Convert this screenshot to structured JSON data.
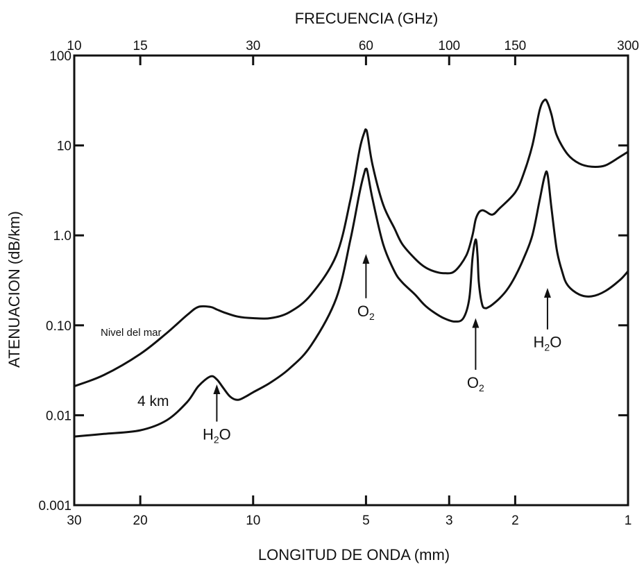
{
  "chart_data": {
    "type": "line",
    "title": "",
    "xlabel": "LONGITUD DE ONDA (mm)",
    "x2label": "FRECUENCIA (GHz)",
    "ylabel": "ATENUACION (dB/km)",
    "x_scale": "log",
    "y_scale": "log",
    "xlim": [
      30,
      1
    ],
    "ylim": [
      0.001,
      100
    ],
    "grid": false,
    "x_ticks": [
      {
        "value": 30,
        "label": "30"
      },
      {
        "value": 20,
        "label": "20"
      },
      {
        "value": 10,
        "label": "10"
      },
      {
        "value": 5,
        "label": "5"
      },
      {
        "value": 3,
        "label": "3"
      },
      {
        "value": 2,
        "label": "2"
      },
      {
        "value": 1,
        "label": "1"
      }
    ],
    "x2_ticks": [
      {
        "value": 10,
        "label": "10"
      },
      {
        "value": 15,
        "label": "15"
      },
      {
        "value": 30,
        "label": "30"
      },
      {
        "value": 60,
        "label": "60"
      },
      {
        "value": 100,
        "label": "100"
      },
      {
        "value": 150,
        "label": "150"
      },
      {
        "value": 300,
        "label": "300"
      }
    ],
    "y_ticks": [
      {
        "value": 0.001,
        "label": "0.001"
      },
      {
        "value": 0.01,
        "label": "0.01"
      },
      {
        "value": 0.1,
        "label": "0.10"
      },
      {
        "value": 1,
        "label": "1.0"
      },
      {
        "value": 10,
        "label": "10"
      },
      {
        "value": 100,
        "label": "100"
      }
    ],
    "series": [
      {
        "name": "Nivel del mar",
        "x": [
          30,
          25,
          20,
          17,
          15,
          14,
          13,
          12.5,
          12,
          11,
          10,
          9,
          8,
          7,
          6,
          5.5,
          5.2,
          5.05,
          5.0,
          4.95,
          4.8,
          4.5,
          4.2,
          4.0,
          3.7,
          3.5,
          3.3,
          3.1,
          2.9,
          2.7,
          2.6,
          2.55,
          2.5,
          2.45,
          2.4,
          2.3,
          2.2,
          2.0,
          1.9,
          1.8,
          1.72,
          1.67,
          1.64,
          1.6,
          1.55,
          1.45,
          1.35,
          1.25,
          1.15,
          1.05,
          1.0
        ],
        "y": [
          0.021,
          0.028,
          0.048,
          0.082,
          0.13,
          0.16,
          0.16,
          0.15,
          0.14,
          0.125,
          0.12,
          0.12,
          0.14,
          0.22,
          0.6,
          2.5,
          9,
          14,
          15,
          13,
          6,
          2.2,
          1.2,
          0.8,
          0.55,
          0.45,
          0.4,
          0.38,
          0.4,
          0.6,
          1.0,
          1.5,
          1.8,
          1.9,
          1.85,
          1.7,
          2.0,
          3.0,
          4.8,
          10,
          25,
          32,
          30,
          22,
          13,
          8,
          6.3,
          5.8,
          6.0,
          7.5,
          8.5
        ]
      },
      {
        "name": "4 km",
        "x": [
          30,
          25,
          20,
          17,
          15,
          14,
          13,
          12.5,
          12,
          11.5,
          11,
          10.5,
          10,
          9,
          8,
          7,
          6,
          5.5,
          5.2,
          5.05,
          5.0,
          4.95,
          4.8,
          4.5,
          4.2,
          4.0,
          3.7,
          3.5,
          3.3,
          3.1,
          2.9,
          2.75,
          2.65,
          2.6,
          2.55,
          2.52,
          2.5,
          2.45,
          2.4,
          2.35,
          2.3,
          2.2,
          2.1,
          2.0,
          1.9,
          1.8,
          1.72,
          1.67,
          1.64,
          1.6,
          1.55,
          1.5,
          1.45,
          1.35,
          1.25,
          1.15,
          1.05,
          1.0
        ],
        "y": [
          0.0058,
          0.0062,
          0.0068,
          0.0088,
          0.014,
          0.021,
          0.027,
          0.025,
          0.02,
          0.016,
          0.0148,
          0.016,
          0.018,
          0.023,
          0.033,
          0.06,
          0.2,
          0.9,
          3.0,
          5.0,
          5.5,
          5.0,
          2.5,
          0.8,
          0.4,
          0.3,
          0.22,
          0.17,
          0.14,
          0.12,
          0.11,
          0.12,
          0.2,
          0.55,
          0.9,
          0.6,
          0.3,
          0.17,
          0.155,
          0.16,
          0.17,
          0.2,
          0.25,
          0.35,
          0.55,
          1.0,
          2.5,
          4.5,
          4.8,
          2.0,
          0.7,
          0.4,
          0.28,
          0.22,
          0.21,
          0.24,
          0.32,
          0.4
        ]
      }
    ],
    "annotations": [
      {
        "id": "h2o_low",
        "text": "H",
        "sub": "2",
        "tail": "O",
        "x": 12.5,
        "y_tip": 0.022,
        "y_tail": 0.0085
      },
      {
        "id": "o2_60",
        "text": "O",
        "sub": "2",
        "tail": "",
        "x": 5.0,
        "y_tip": 0.62,
        "y_tail": 0.2
      },
      {
        "id": "o2_119",
        "text": "O",
        "sub": "2",
        "tail": "",
        "x": 2.55,
        "y_tip": 0.12,
        "y_tail": 0.032
      },
      {
        "id": "h2o_183",
        "text": "H",
        "sub": "2",
        "tail": "O",
        "x": 1.64,
        "y_tip": 0.26,
        "y_tail": 0.09
      }
    ]
  }
}
